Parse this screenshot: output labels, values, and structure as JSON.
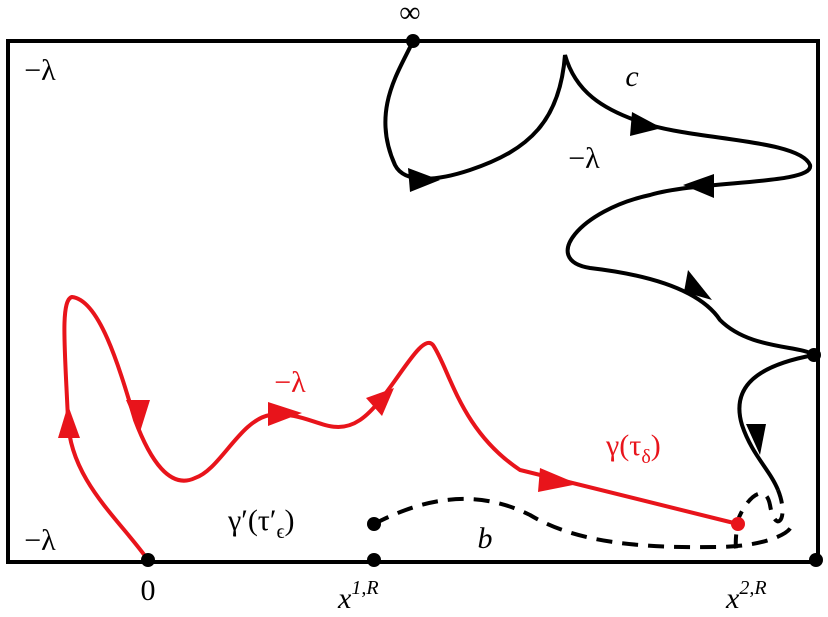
{
  "labels": {
    "infinity": "∞",
    "lambda_top_left": "−λ",
    "c": "c",
    "lambda_right": "−λ",
    "lambda_red": "−λ",
    "gamma": {
      "main": "γ(τ",
      "sub": "δ",
      "close": ")"
    },
    "gamma_prime": {
      "main": "γ′(τ′",
      "sub": "ϵ",
      "close": ")"
    },
    "b": "b",
    "lambda_bottom_left": "−λ",
    "zero": "0",
    "x1": {
      "base": "x",
      "sup": "1,R"
    },
    "x2": {
      "base": "x",
      "sup": "2,R"
    }
  }
}
